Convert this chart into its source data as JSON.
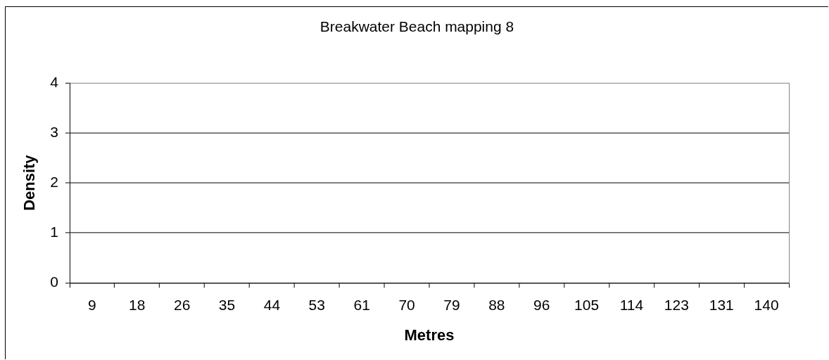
{
  "chart_data": {
    "type": "bar",
    "title": "Breakwater Beach mapping 8",
    "xlabel": "Metres",
    "ylabel": "Density",
    "categories": [
      "9",
      "18",
      "26",
      "35",
      "44",
      "53",
      "61",
      "70",
      "79",
      "88",
      "96",
      "105",
      "114",
      "123",
      "131",
      "140"
    ],
    "values": [
      null,
      null,
      null,
      null,
      null,
      null,
      null,
      null,
      null,
      null,
      null,
      null,
      null,
      null,
      null,
      null
    ],
    "ylim": [
      0,
      4
    ],
    "yticks": [
      0,
      1,
      2,
      3,
      4
    ],
    "grid": "y"
  }
}
